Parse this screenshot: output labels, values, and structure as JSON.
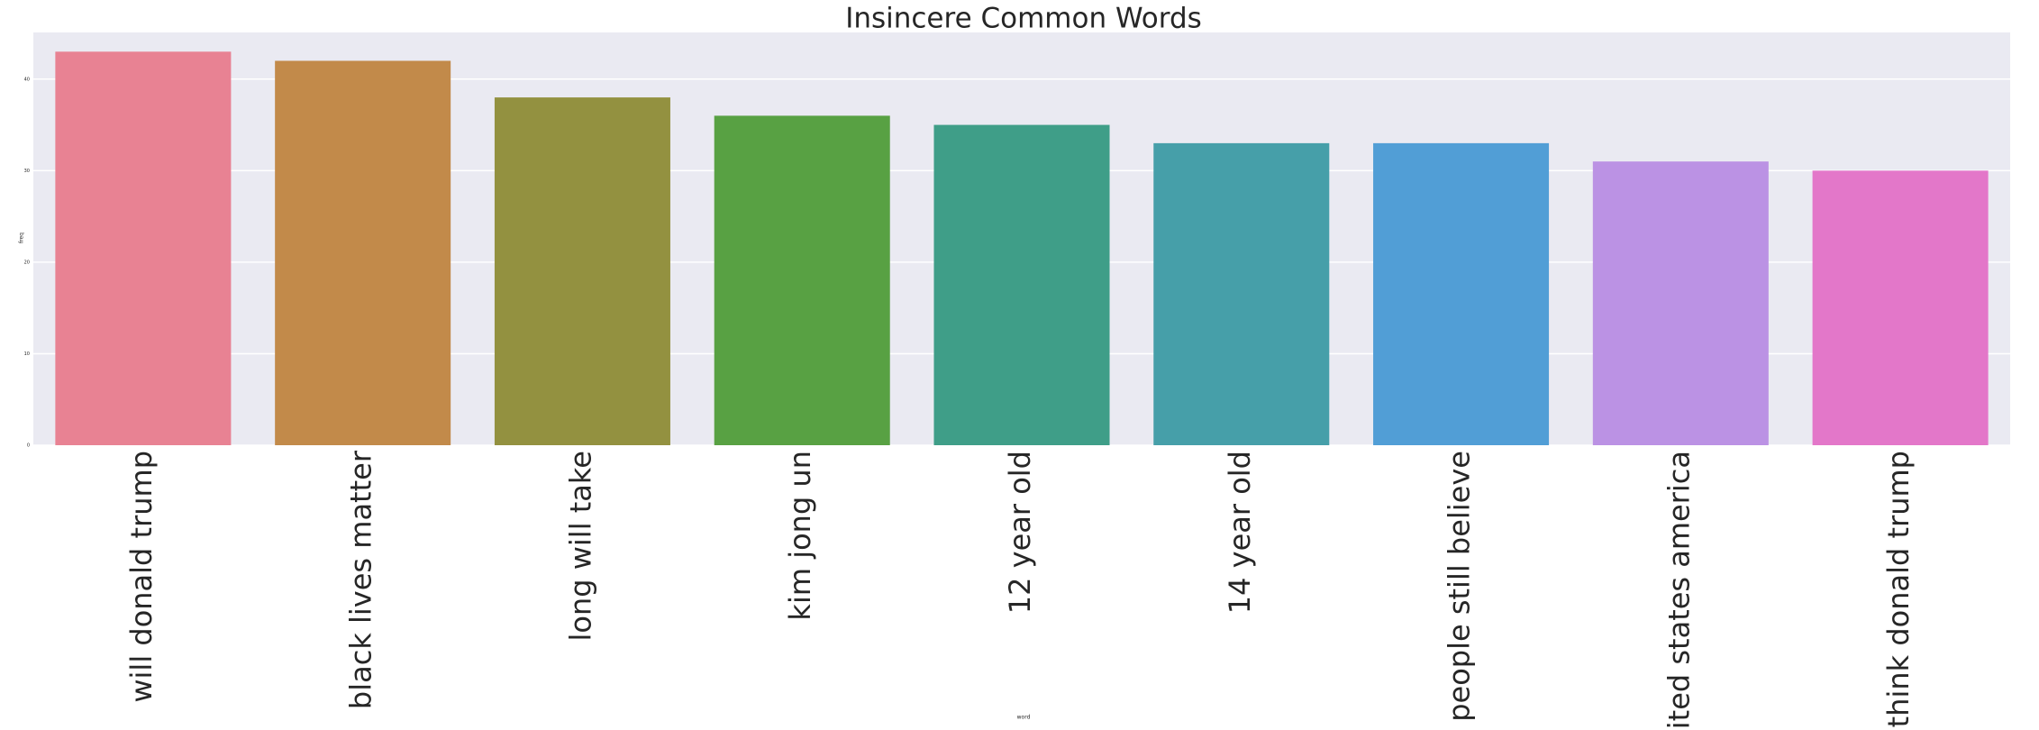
{
  "chart_data": {
    "type": "bar",
    "title": "Insincere Common Words",
    "x_label": "word",
    "y_label": "freq",
    "categories": [
      "will donald trump",
      "black lives matter",
      "long will take",
      "kim jong un",
      "12 year old",
      "14 year old",
      "people still believe",
      "united states america",
      "think donald trump"
    ],
    "values": [
      43,
      42,
      38,
      36,
      35,
      33,
      33,
      31,
      30
    ],
    "colors": [
      "#e88293",
      "#c28a4a",
      "#939140",
      "#58a143",
      "#3f9e88",
      "#469fa9",
      "#519ed6",
      "#bb92e4",
      "#e377c9"
    ],
    "ylim": [
      0,
      45.1
    ],
    "yticks": [
      0,
      10,
      20,
      30,
      40
    ],
    "grid": true
  }
}
